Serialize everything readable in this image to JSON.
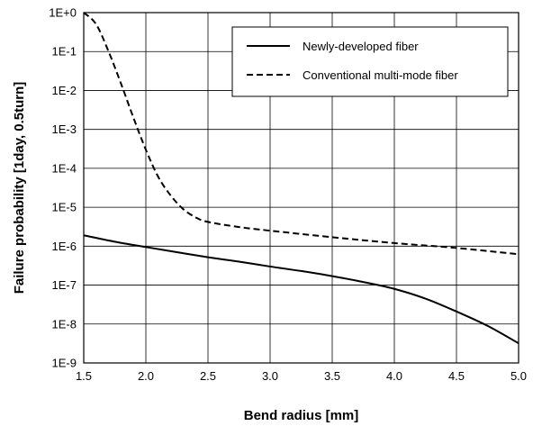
{
  "chart_data": {
    "type": "line",
    "title": "",
    "xlabel": "Bend radius [mm]",
    "ylabel": "Failure probability [1day, 0.5turn]",
    "xlim": [
      1.5,
      5.0
    ],
    "ylim": [
      1e-09,
      1
    ],
    "yscale": "log",
    "grid": true,
    "legend_position": "top-right",
    "x_ticks": [
      "1.5",
      "2.0",
      "2.5",
      "3.0",
      "3.5",
      "4.0",
      "4.5",
      "5.0"
    ],
    "y_ticks": [
      "1E+0",
      "1E-1",
      "1E-2",
      "1E-3",
      "1E-4",
      "1E-5",
      "1E-6",
      "1E-7",
      "1E-8",
      "1E-9"
    ],
    "series": [
      {
        "name": "Newly-developed fiber",
        "style": "solid",
        "color": "#000000",
        "x": [
          1.5,
          1.75,
          2.0,
          2.25,
          2.5,
          2.75,
          3.0,
          3.25,
          3.5,
          3.75,
          4.0,
          4.25,
          4.5,
          4.75,
          5.0
        ],
        "y": [
          1.9e-06,
          1.3e-06,
          9.5e-07,
          7e-07,
          5.2e-07,
          4e-07,
          3e-07,
          2.3e-07,
          1.7e-07,
          1.2e-07,
          8e-08,
          4.5e-08,
          2.1e-08,
          9e-09,
          3.2e-09
        ]
      },
      {
        "name": "Conventional multi-mode fiber",
        "style": "dashed",
        "color": "#000000",
        "x": [
          1.5,
          1.6,
          1.7,
          1.8,
          1.9,
          2.0,
          2.1,
          2.2,
          2.3,
          2.4,
          2.5,
          2.75,
          3.0,
          3.5,
          4.0,
          4.5,
          5.0
        ],
        "y": [
          1.0,
          0.5,
          0.1,
          0.015,
          0.002,
          0.0003,
          6e-05,
          2e-05,
          9e-06,
          5.5e-06,
          4.2e-06,
          3.1e-06,
          2.5e-06,
          1.7e-06,
          1.2e-06,
          9e-07,
          6.2e-07
        ]
      }
    ]
  }
}
